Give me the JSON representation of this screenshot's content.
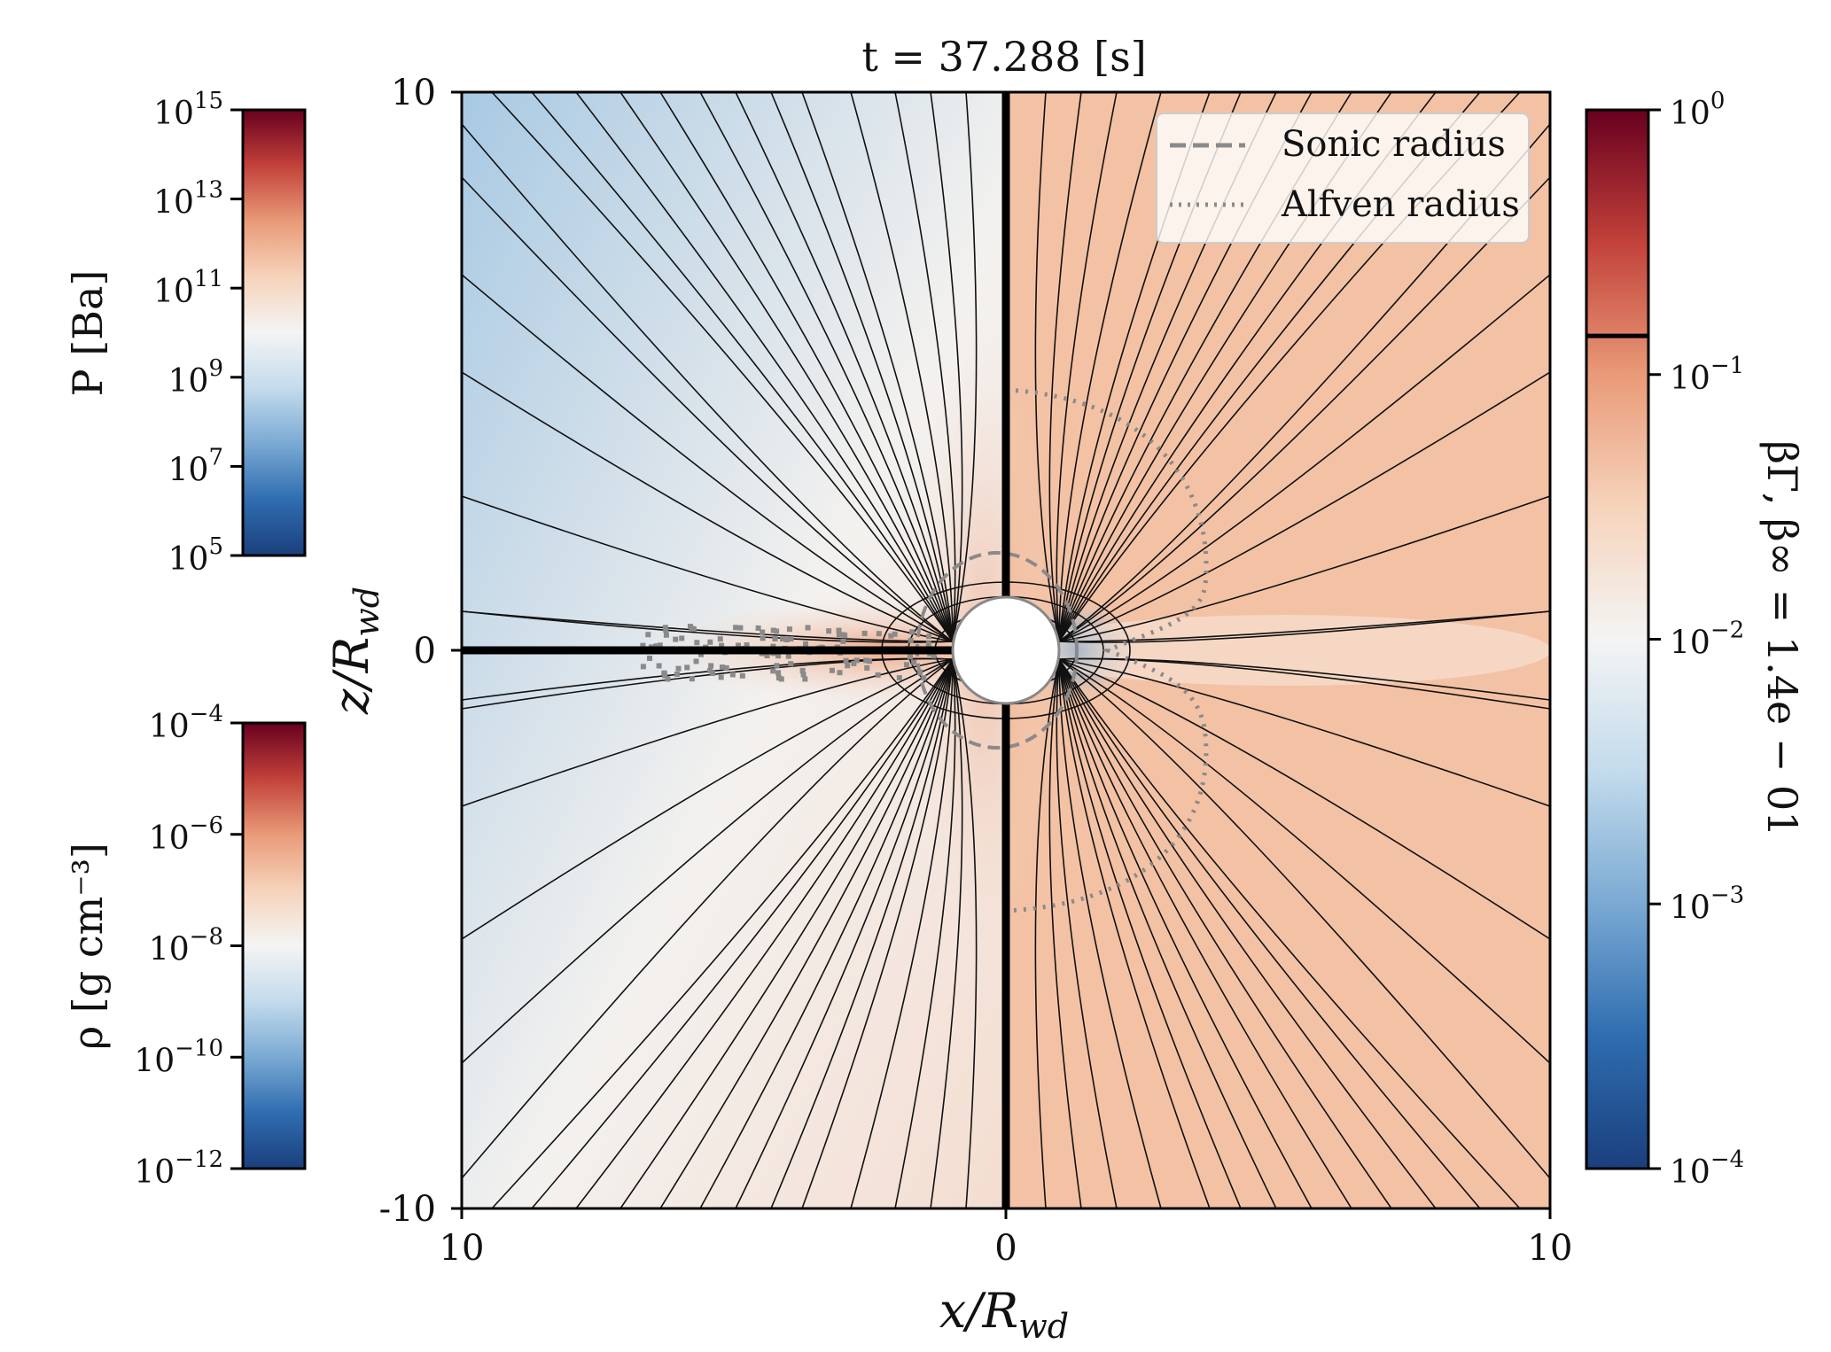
{
  "title": "t = 37.288 [s]",
  "colors": {
    "diverging": [
      "#1b3f7d",
      "#2f6db0",
      "#7aa9d3",
      "#c3dbec",
      "#f4f4f4",
      "#f6d3bb",
      "#e99a78",
      "#c2413a",
      "#68001f"
    ],
    "left_background": [
      "#a8c9e3",
      "#f3f1ef",
      "#f4ddd0"
    ],
    "right_background": "#f3c2a5",
    "field_lines": "#111111",
    "radius_curves": "#8a8a8a",
    "star": "#ffffff"
  },
  "chart_data": {
    "type": "heatmap",
    "title": "t = 37.288 [s]",
    "xlabel": "x/R_wd",
    "ylabel": "z/R_wd",
    "xlim": [
      -10,
      10
    ],
    "ylim": [
      -10,
      10
    ],
    "x_ticks": [
      "10",
      "0",
      "10"
    ],
    "y_ticks": [
      "10",
      "0",
      "-10"
    ],
    "panels": {
      "left": "pressure (top half) and density (bottom half)",
      "right": "βΓ, β∞"
    },
    "legend": {
      "placement": "top-right",
      "entries": [
        {
          "label": "Sonic radius",
          "style": "dashed"
        },
        {
          "label": "Alfven radius",
          "style": "dotted"
        }
      ]
    },
    "colorbars": [
      {
        "id": "pressure",
        "label": "P [Ba]",
        "scale": "log",
        "range": [
          100000.0,
          1000000000000000.0
        ],
        "ticks": [
          {
            "base": "10",
            "exp": "15"
          },
          {
            "base": "10",
            "exp": "13"
          },
          {
            "base": "10",
            "exp": "11"
          },
          {
            "base": "10",
            "exp": "9"
          },
          {
            "base": "10",
            "exp": "7"
          },
          {
            "base": "10",
            "exp": "5"
          }
        ]
      },
      {
        "id": "density",
        "label": "ρ [g cm⁻³]",
        "scale": "log",
        "range": [
          1e-12,
          0.0001
        ],
        "ticks": [
          {
            "base": "10",
            "exp": "−4"
          },
          {
            "base": "10",
            "exp": "−6"
          },
          {
            "base": "10",
            "exp": "−8"
          },
          {
            "base": "10",
            "exp": "−10"
          },
          {
            "base": "10",
            "exp": "−12"
          }
        ]
      },
      {
        "id": "beta",
        "label": "βΓ, β∞ = 1.4e − 01",
        "scale": "log",
        "range": [
          0.0001,
          1
        ],
        "marker_value": 0.14,
        "ticks": [
          {
            "base": "10",
            "exp": "0"
          },
          {
            "base": "10",
            "exp": "−1"
          },
          {
            "base": "10",
            "exp": "−2"
          },
          {
            "base": "10",
            "exp": "−3"
          },
          {
            "base": "10",
            "exp": "−4"
          }
        ]
      }
    ]
  }
}
